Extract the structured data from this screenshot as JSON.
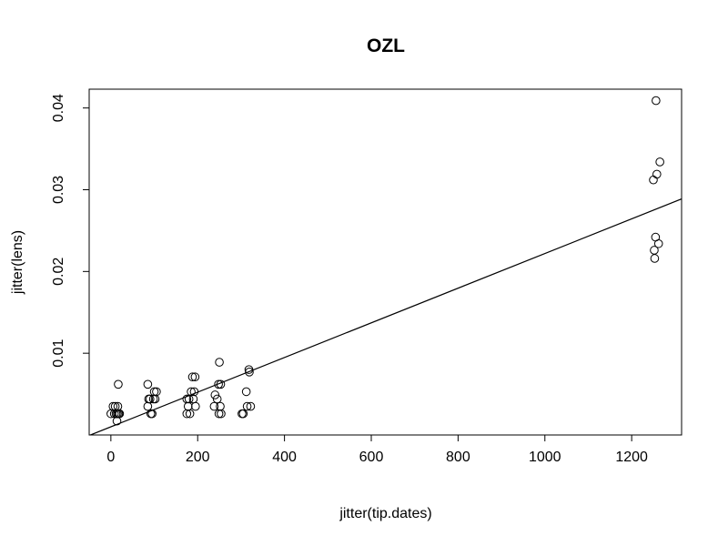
{
  "chart_data": {
    "type": "scatter",
    "title": "OZL",
    "xlabel": "jitter(tip.dates)",
    "ylabel": "jitter(lens)",
    "xlim": [
      -50,
      1315
    ],
    "ylim": [
      0.0,
      0.0423
    ],
    "x_ticks": [
      0,
      200,
      400,
      600,
      800,
      1000,
      1200
    ],
    "x_tick_labels": [
      "0",
      "200",
      "400",
      "600",
      "800",
      "1000",
      "1200"
    ],
    "y_ticks": [
      0.01,
      0.02,
      0.03,
      0.04
    ],
    "y_tick_labels": [
      "0.01",
      "0.02",
      "0.03",
      "0.04"
    ],
    "grid": false,
    "legend": "none",
    "marker": "open-circle",
    "points": [
      [
        0,
        0.0026
      ],
      [
        5,
        0.0035
      ],
      [
        8,
        0.0026
      ],
      [
        10,
        0.0035
      ],
      [
        12,
        0.0026
      ],
      [
        14,
        0.0017
      ],
      [
        15,
        0.0026
      ],
      [
        16,
        0.0035
      ],
      [
        17,
        0.0062
      ],
      [
        18,
        0.0026
      ],
      [
        20,
        0.0026
      ],
      [
        85,
        0.0062
      ],
      [
        85,
        0.0035
      ],
      [
        87,
        0.0044
      ],
      [
        90,
        0.0044
      ],
      [
        92,
        0.0026
      ],
      [
        95,
        0.0026
      ],
      [
        98,
        0.0044
      ],
      [
        100,
        0.0053
      ],
      [
        102,
        0.0044
      ],
      [
        105,
        0.0053
      ],
      [
        175,
        0.0044
      ],
      [
        175,
        0.0026
      ],
      [
        178,
        0.0035
      ],
      [
        180,
        0.0044
      ],
      [
        182,
        0.0026
      ],
      [
        185,
        0.0053
      ],
      [
        188,
        0.0071
      ],
      [
        190,
        0.0044
      ],
      [
        192,
        0.0053
      ],
      [
        194,
        0.0071
      ],
      [
        195,
        0.0035
      ],
      [
        238,
        0.0035
      ],
      [
        240,
        0.0049
      ],
      [
        245,
        0.0044
      ],
      [
        248,
        0.0062
      ],
      [
        249,
        0.0026
      ],
      [
        250,
        0.0089
      ],
      [
        252,
        0.0035
      ],
      [
        253,
        0.0062
      ],
      [
        254,
        0.0026
      ],
      [
        302,
        0.0026
      ],
      [
        305,
        0.0026
      ],
      [
        312,
        0.0053
      ],
      [
        314,
        0.0035
      ],
      [
        318,
        0.008
      ],
      [
        319,
        0.0077
      ],
      [
        322,
        0.0035
      ],
      [
        1250,
        0.0312
      ],
      [
        1252,
        0.0226
      ],
      [
        1253,
        0.0216
      ],
      [
        1255,
        0.0242
      ],
      [
        1256,
        0.0409
      ],
      [
        1258,
        0.0319
      ],
      [
        1262,
        0.0234
      ],
      [
        1265,
        0.0334
      ]
    ],
    "fit_line": {
      "intercept": 0.000998,
      "slope": 2.12e-05
    }
  },
  "colors": {
    "background": "#ffffff",
    "foreground": "#000000"
  }
}
